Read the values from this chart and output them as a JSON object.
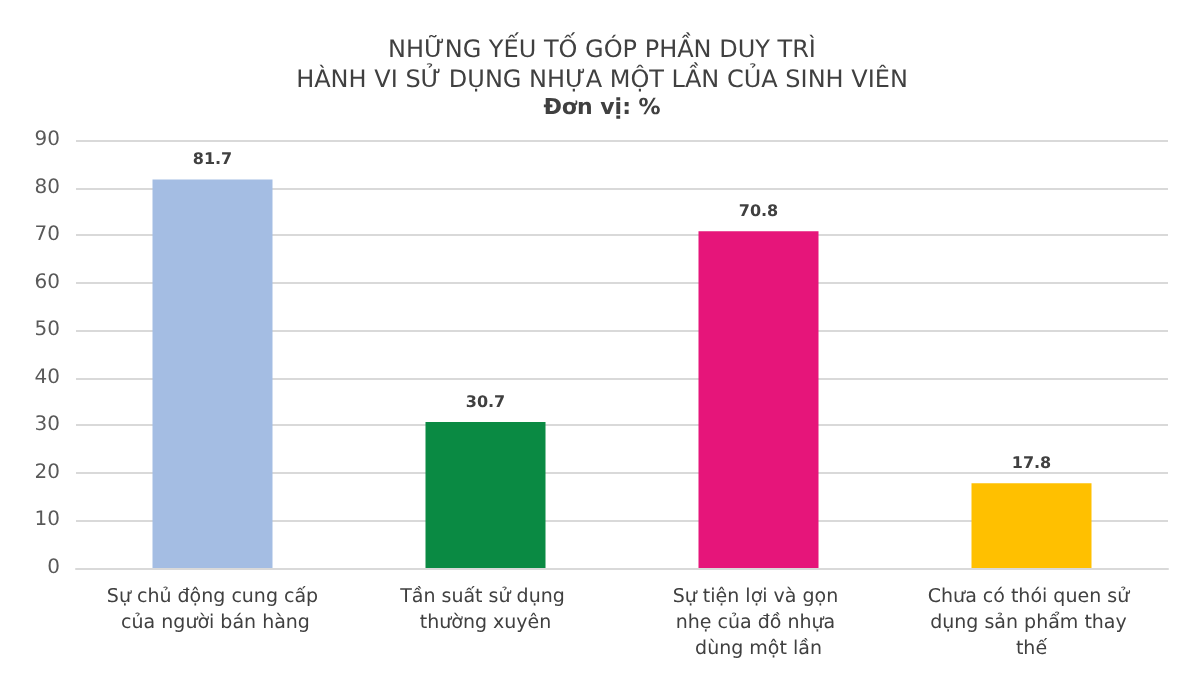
{
  "chart_data": {
    "type": "bar",
    "title": "NHỮNG YẾU TỐ GÓP PHẦN DUY TRÌ\nHÀNH VI SỬ DỤNG NHỰA MỘT LẦN CỦA SINH VIÊN",
    "subtitle": "Đơn vị: %",
    "categories": [
      "Sự chủ động cung cấp của người bán hàng",
      "Tần suất sử dụng thường xuyên",
      "Sự tiện lợi và gọn nhẹ của đồ nhựa dùng một lần",
      "Chưa có thói quen sử dụng sản phẩm thay thế"
    ],
    "values": [
      81.7,
      30.7,
      70.8,
      17.8
    ],
    "colors": [
      "#a4bde3",
      "#0a8a43",
      "#e6157a",
      "#ffc000"
    ],
    "ylim": [
      0,
      90
    ],
    "yticks": [
      0,
      10,
      20,
      30,
      40,
      50,
      60,
      70,
      80,
      90
    ],
    "grid": "y",
    "data_labels": true
  }
}
